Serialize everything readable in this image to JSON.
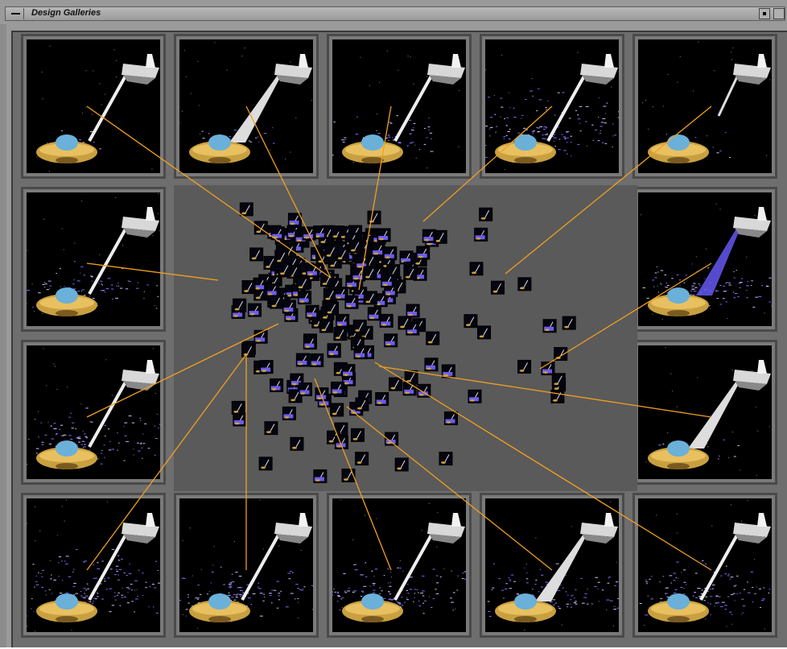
{
  "window": {
    "title": "Design Galleries"
  },
  "gallery": {
    "thumbnails": [
      {
        "id": "t1",
        "spray": 0.05,
        "hose": "thin"
      },
      {
        "id": "t2",
        "spray": 0.1,
        "hose": "cone"
      },
      {
        "id": "t3",
        "spray": 0.3,
        "hose": "thin"
      },
      {
        "id": "t4",
        "spray": 0.9,
        "hose": "thin"
      },
      {
        "id": "t5",
        "spray": 0.05,
        "hose": "short"
      },
      {
        "id": "t6",
        "spray": 0.4,
        "hose": "thin"
      },
      {
        "id": "t7",
        "spray": 0.5,
        "hose": "spray"
      },
      {
        "id": "t8",
        "spray": 0.6,
        "hose": "thin"
      },
      {
        "id": "t9",
        "spray": 0.1,
        "hose": "cone"
      },
      {
        "id": "t10",
        "spray": 1.0,
        "hose": "thin"
      },
      {
        "id": "t11",
        "spray": 0.6,
        "hose": "thin"
      },
      {
        "id": "t12",
        "spray": 0.8,
        "hose": "thin"
      },
      {
        "id": "t13",
        "spray": 0.6,
        "hose": "cone"
      },
      {
        "id": "t14",
        "spray": 0.7,
        "hose": "thin"
      }
    ]
  },
  "colors": {
    "link_line": "#f0a020",
    "panel": "#5a5a5a",
    "frame": "#6e6e6e"
  }
}
